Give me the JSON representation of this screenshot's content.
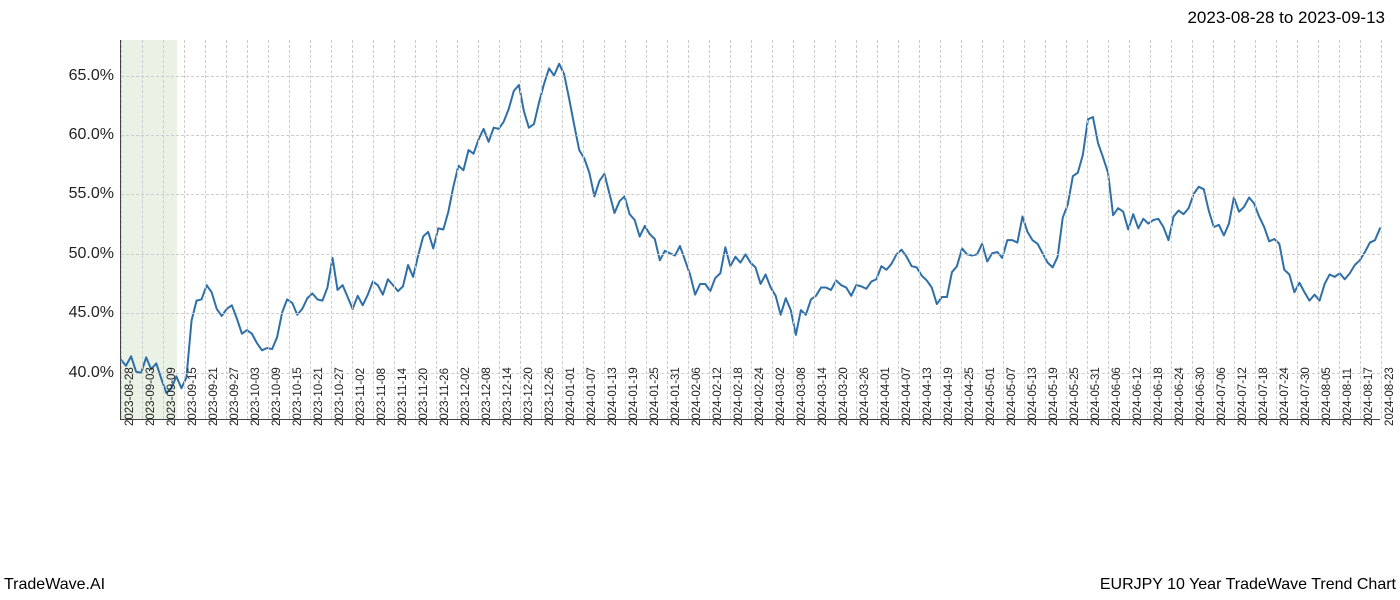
{
  "header": {
    "date_range": "2023-08-28 to 2023-09-13"
  },
  "footer": {
    "left": "TradeWave.AI",
    "right": "EURJPY 10 Year TradeWave Trend Chart"
  },
  "chart": {
    "type": "line",
    "background_color": "#ffffff",
    "grid_color": "#cccccc",
    "grid_dash": "3,3",
    "axis_color": "#444444",
    "line_color": "#2e6fa7",
    "line_width": 2,
    "ylim": [
      36,
      68
    ],
    "yticks": [
      40,
      45,
      50,
      55,
      60,
      65
    ],
    "ytick_labels": [
      "40.0%",
      "45.0%",
      "50.0%",
      "55.0%",
      "60.0%",
      "65.0%"
    ],
    "tick_fontsize": 16,
    "xtick_fontsize": 11.5,
    "highlight": {
      "from": "2023-08-28",
      "to": "2023-09-13",
      "color": "#d9e8d2",
      "opacity": 0.55
    },
    "x_labels": [
      "2023-08-28",
      "2023-09-03",
      "2023-09-09",
      "2023-09-15",
      "2023-09-21",
      "2023-09-27",
      "2023-10-03",
      "2023-10-09",
      "2023-10-15",
      "2023-10-21",
      "2023-10-27",
      "2023-11-02",
      "2023-11-08",
      "2023-11-14",
      "2023-11-20",
      "2023-11-26",
      "2023-12-02",
      "2023-12-08",
      "2023-12-14",
      "2023-12-20",
      "2023-12-26",
      "2024-01-01",
      "2024-01-07",
      "2024-01-13",
      "2024-01-19",
      "2024-01-25",
      "2024-01-31",
      "2024-02-06",
      "2024-02-12",
      "2024-02-18",
      "2024-02-24",
      "2024-03-02",
      "2024-03-08",
      "2024-03-14",
      "2024-03-20",
      "2024-03-26",
      "2024-04-01",
      "2024-04-07",
      "2024-04-13",
      "2024-04-19",
      "2024-04-25",
      "2024-05-01",
      "2024-05-07",
      "2024-05-13",
      "2024-05-19",
      "2024-05-25",
      "2024-05-31",
      "2024-06-06",
      "2024-06-12",
      "2024-06-18",
      "2024-06-24",
      "2024-06-30",
      "2024-07-06",
      "2024-07-12",
      "2024-07-18",
      "2024-07-24",
      "2024-07-30",
      "2024-08-05",
      "2024-08-11",
      "2024-08-17",
      "2024-08-23"
    ],
    "series": [
      41.0,
      40.5,
      41.3,
      40.0,
      39.9,
      41.2,
      40.2,
      40.7,
      39.4,
      38.2,
      38.6,
      39.6,
      38.6,
      39.5,
      44.3,
      46.0,
      46.1,
      47.3,
      46.7,
      45.3,
      44.7,
      45.3,
      45.6,
      44.5,
      43.2,
      43.5,
      43.2,
      42.4,
      41.8,
      42.0,
      41.9,
      42.9,
      45.0,
      46.1,
      45.8,
      44.8,
      45.3,
      46.2,
      46.6,
      46.1,
      46.0,
      47.1,
      49.6,
      46.9,
      47.3,
      46.3,
      45.3,
      46.4,
      45.6,
      46.5,
      47.6,
      47.3,
      46.5,
      47.8,
      47.3,
      46.8,
      47.2,
      49.0,
      48.0,
      49.8,
      51.4,
      51.8,
      50.4,
      52.1,
      52.0,
      53.5,
      55.6,
      57.4,
      57.0,
      58.7,
      58.4,
      59.6,
      60.5,
      59.4,
      60.6,
      60.5,
      61.1,
      62.2,
      63.7,
      64.2,
      62.0,
      60.6,
      60.9,
      62.7,
      64.3,
      65.6,
      65.0,
      66.0,
      65.1,
      63.0,
      60.8,
      58.7,
      58.0,
      56.8,
      54.8,
      56.1,
      56.7,
      55.0,
      53.4,
      54.4,
      54.8,
      53.3,
      52.8,
      51.4,
      52.3,
      51.6,
      51.2,
      49.4,
      50.2,
      50.0,
      49.8,
      50.6,
      49.4,
      48.2,
      46.5,
      47.4,
      47.4,
      46.8,
      47.9,
      48.3,
      50.5,
      48.9,
      49.7,
      49.2,
      49.9,
      49.2,
      48.8,
      47.4,
      48.2,
      47.1,
      46.4,
      44.8,
      46.2,
      45.2,
      43.1,
      45.2,
      44.8,
      46.1,
      46.4,
      47.1,
      47.1,
      46.9,
      47.7,
      47.3,
      47.1,
      46.4,
      47.3,
      47.2,
      47.0,
      47.6,
      47.8,
      48.9,
      48.6,
      49.1,
      49.9,
      50.3,
      49.7,
      48.9,
      48.8,
      48.1,
      47.7,
      47.1,
      45.7,
      46.3,
      46.3,
      48.4,
      48.9,
      50.4,
      49.9,
      49.8,
      49.9,
      50.8,
      49.3,
      50.0,
      50.1,
      49.6,
      51.1,
      51.1,
      50.9,
      53.1,
      51.8,
      51.1,
      50.8,
      50.0,
      49.2,
      48.8,
      49.7,
      53.0,
      54.1,
      56.5,
      56.8,
      58.3,
      61.3,
      61.5,
      59.3,
      58.1,
      56.8,
      53.2,
      53.8,
      53.5,
      52.0,
      53.3,
      52.1,
      52.9,
      52.5,
      52.8,
      52.9,
      52.2,
      51.1,
      53.1,
      53.6,
      53.3,
      53.8,
      55.0,
      55.6,
      55.4,
      53.6,
      52.2,
      52.4,
      51.5,
      52.5,
      54.7,
      53.5,
      53.9,
      54.7,
      54.2,
      53.1,
      52.2,
      51.0,
      51.2,
      50.8,
      48.6,
      48.2,
      46.7,
      47.5,
      46.7,
      46.0,
      46.5,
      46.0,
      47.4,
      48.2,
      48.0,
      48.3,
      47.8,
      48.3,
      49.0,
      49.4,
      50.1,
      50.9,
      51.1,
      52.1
    ]
  }
}
